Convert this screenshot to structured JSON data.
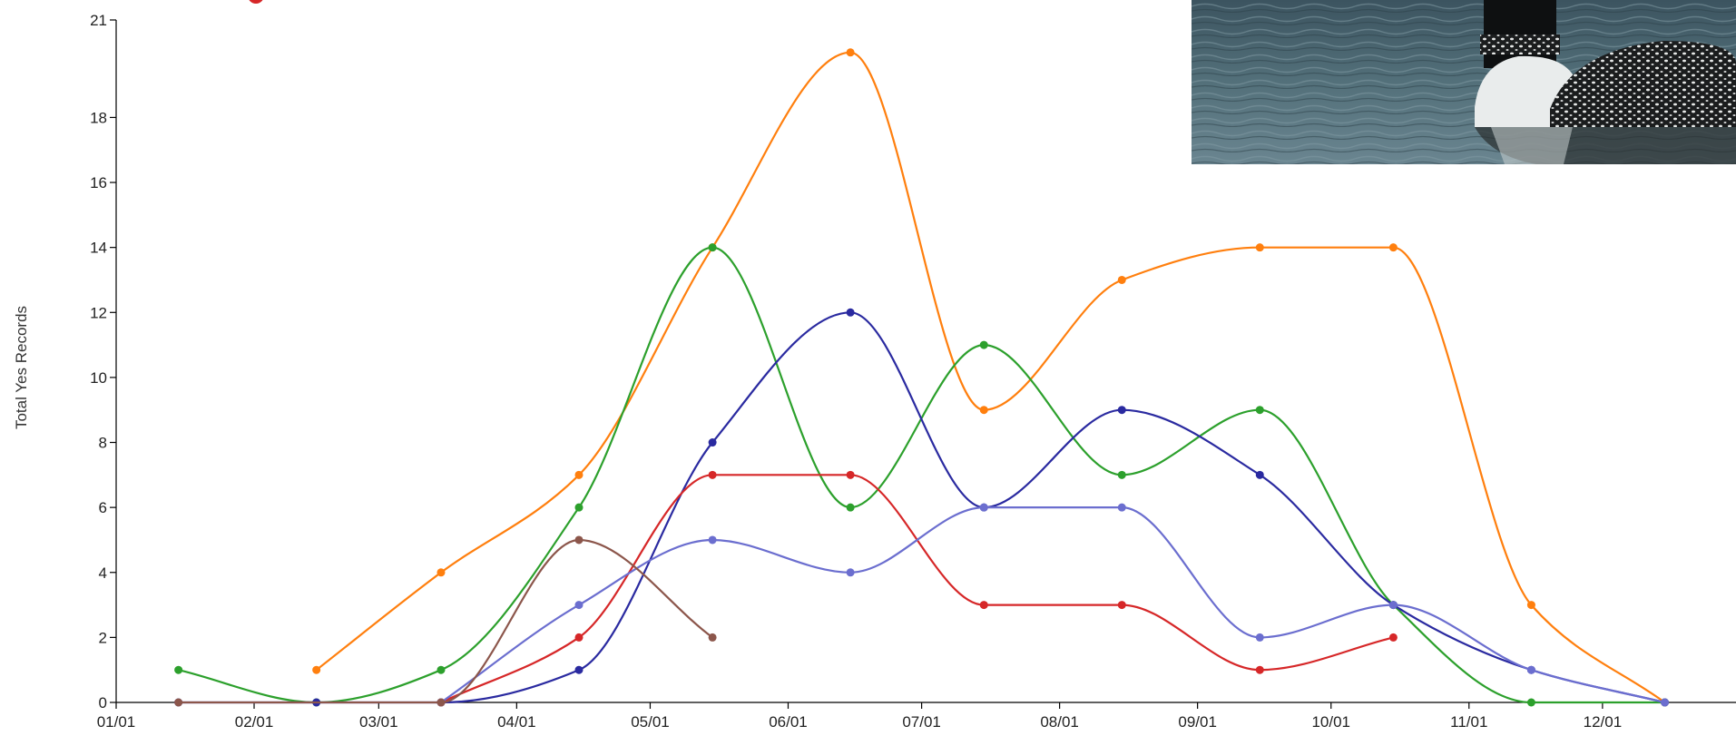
{
  "chart_data": {
    "type": "line",
    "ylabel": "Total Yes Records",
    "xlabel": "",
    "ylim": [
      0,
      21
    ],
    "yticks": [
      0,
      2,
      4,
      6,
      8,
      10,
      12,
      14,
      16,
      18,
      21
    ],
    "xlim": [
      "01-01",
      "12-31"
    ],
    "xticks": [
      "01/01",
      "02/01",
      "03/01",
      "04/01",
      "05/01",
      "06/01",
      "07/01",
      "08/01",
      "09/01",
      "10/01",
      "11/01",
      "12/01"
    ],
    "x_tick_dates": [
      "01-01",
      "02-01",
      "03-01",
      "04-01",
      "05-01",
      "06-01",
      "07-01",
      "08-01",
      "09-01",
      "10-01",
      "11-01",
      "12-01"
    ],
    "grid": false,
    "interpolation": "smooth",
    "legend": {
      "placement": "top-left",
      "entries": [
        {
          "color": "#d62728"
        }
      ]
    },
    "series": [
      {
        "color": "#ff7f0e",
        "x": [
          "02-15",
          "03-15",
          "04-15",
          "05-15",
          "06-15",
          "07-15",
          "08-15",
          "09-15",
          "10-15",
          "11-15",
          "12-15"
        ],
        "y": [
          1,
          4,
          7,
          14,
          20,
          9,
          13,
          14,
          14,
          3,
          0
        ]
      },
      {
        "color": "#2ca02c",
        "x": [
          "01-15",
          "02-15",
          "03-15",
          "04-15",
          "05-15",
          "06-15",
          "07-15",
          "08-15",
          "09-15",
          "10-15",
          "11-15",
          "12-15"
        ],
        "y": [
          1,
          0,
          1,
          6,
          14,
          6,
          11,
          7,
          9,
          3,
          0,
          0
        ]
      },
      {
        "color": "#2a2aa0",
        "x": [
          "01-15",
          "02-15",
          "03-15",
          "04-15",
          "05-15",
          "06-15",
          "07-15",
          "08-15",
          "09-15",
          "10-15",
          "11-15",
          "12-15"
        ],
        "y": [
          0,
          0,
          0,
          1,
          8,
          12,
          6,
          9,
          7,
          3,
          1,
          0
        ]
      },
      {
        "color": "#d62728",
        "x": [
          "03-15",
          "04-15",
          "05-15",
          "06-15",
          "07-15",
          "08-15",
          "09-15",
          "10-15"
        ],
        "y": [
          0,
          2,
          7,
          7,
          3,
          3,
          1,
          2
        ]
      },
      {
        "color": "#6b6ecf",
        "x": [
          "03-15",
          "04-15",
          "05-15",
          "06-15",
          "07-15",
          "08-15",
          "09-15",
          "10-15",
          "11-15",
          "12-15"
        ],
        "y": [
          0,
          3,
          5,
          4,
          6,
          6,
          2,
          3,
          1,
          0
        ]
      },
      {
        "color": "#8c564b",
        "x": [
          "01-15",
          "03-15",
          "04-15",
          "05-15"
        ],
        "y": [
          0,
          0,
          5,
          2
        ]
      }
    ]
  },
  "photo": {
    "description_icon": "loon-bird-photo"
  }
}
